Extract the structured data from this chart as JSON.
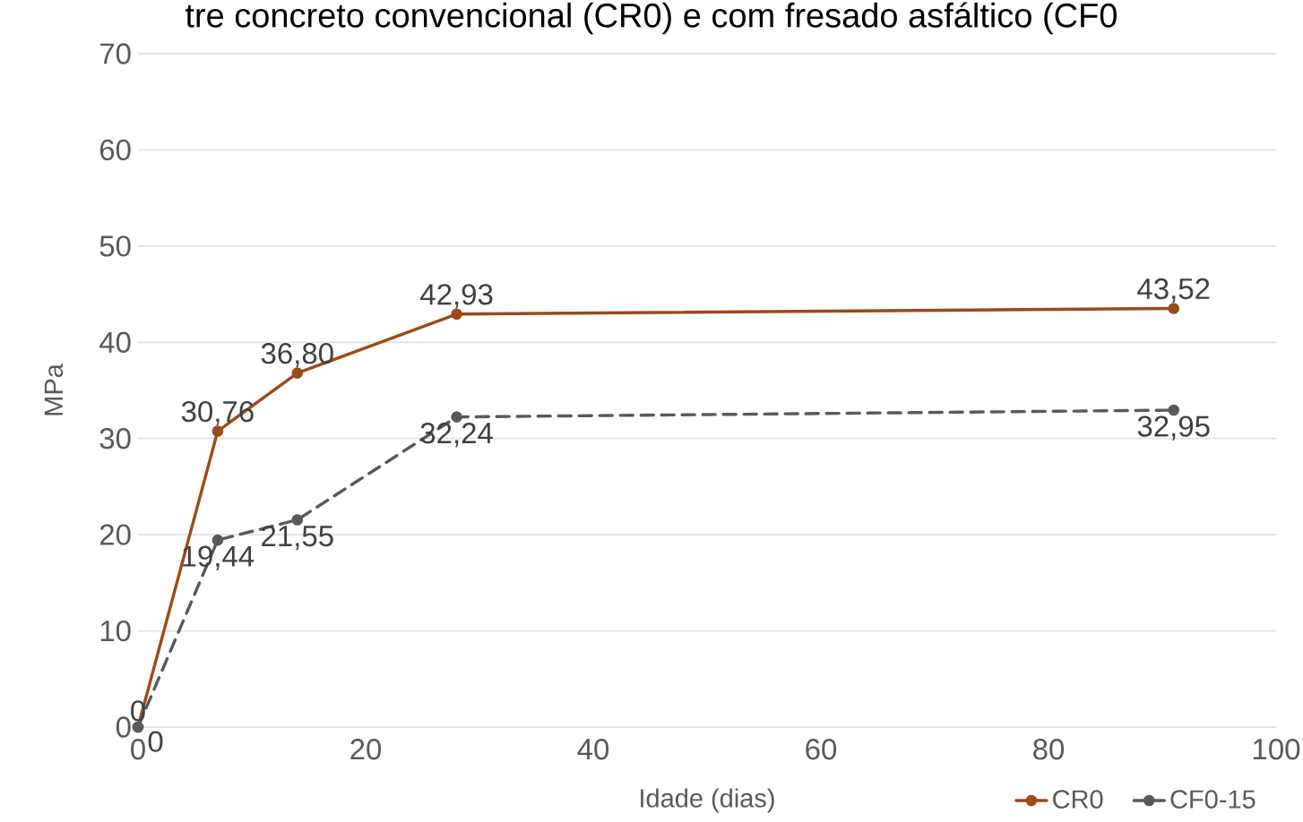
{
  "chart_data": {
    "type": "line",
    "title": "tre concreto convencional (CR0) e com fresado asfáltico (CF0",
    "xlabel": "Idade (dias)",
    "ylabel": "MPa",
    "x": [
      0,
      7,
      14,
      28,
      91
    ],
    "series": [
      {
        "name": "CR0",
        "color": "#9C4A17",
        "line_style": "solid",
        "values": [
          0,
          30.76,
          36.8,
          42.93,
          43.52
        ],
        "value_labels": [
          "0",
          "30,76",
          "36,80",
          "42,93",
          "43,52"
        ]
      },
      {
        "name": "CF0-15",
        "color": "#595959",
        "line_style": "dashed",
        "values": [
          0,
          19.44,
          21.55,
          32.24,
          32.95
        ],
        "value_labels": [
          "0",
          "19,44",
          "21,55",
          "32,24",
          "32,95"
        ]
      }
    ],
    "xlim": [
      0,
      100
    ],
    "ylim": [
      0,
      70
    ],
    "xticks": [
      0,
      20,
      40,
      60,
      80,
      100
    ],
    "yticks": [
      0,
      10,
      20,
      30,
      40,
      50,
      60,
      70
    ],
    "grid": "y",
    "legend": "bottom right",
    "marker": "circle"
  }
}
